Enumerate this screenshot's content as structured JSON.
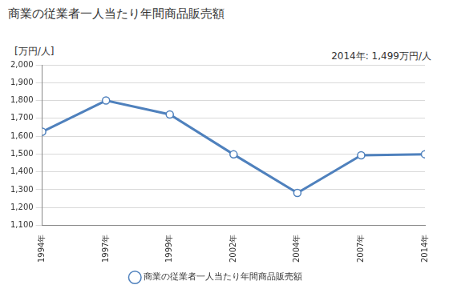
{
  "chart_data": {
    "type": "line",
    "title": "商業の従業者一人当たり年間商品販売額",
    "y_label": "[万円/人]",
    "annotations": [
      "2014年: 1,499万円/人"
    ],
    "categories": [
      "1994年",
      "1997年",
      "1999年",
      "2002年",
      "2004年",
      "2007年",
      "2014年"
    ],
    "series": [
      {
        "name": "商業の従業者一人当たり年間商品販売額",
        "color": "#4f81bd",
        "marker": "circle",
        "values": [
          1625,
          1800,
          1722,
          1498,
          1282,
          1493,
          1499
        ]
      }
    ],
    "ylim": [
      1100,
      2000
    ],
    "yticks": [
      {
        "value": 1100,
        "label": "1,100"
      },
      {
        "value": 1200,
        "label": "1,200"
      },
      {
        "value": 1300,
        "label": "1,300"
      },
      {
        "value": 1400,
        "label": "1,400"
      },
      {
        "value": 1500,
        "label": "1,500"
      },
      {
        "value": 1600,
        "label": "1,600"
      },
      {
        "value": 1700,
        "label": "1,700"
      },
      {
        "value": 1800,
        "label": "1,800"
      },
      {
        "value": 1900,
        "label": "1,900"
      },
      {
        "value": 2000,
        "label": "2,000"
      }
    ],
    "grid": true,
    "legend": "bottom"
  }
}
